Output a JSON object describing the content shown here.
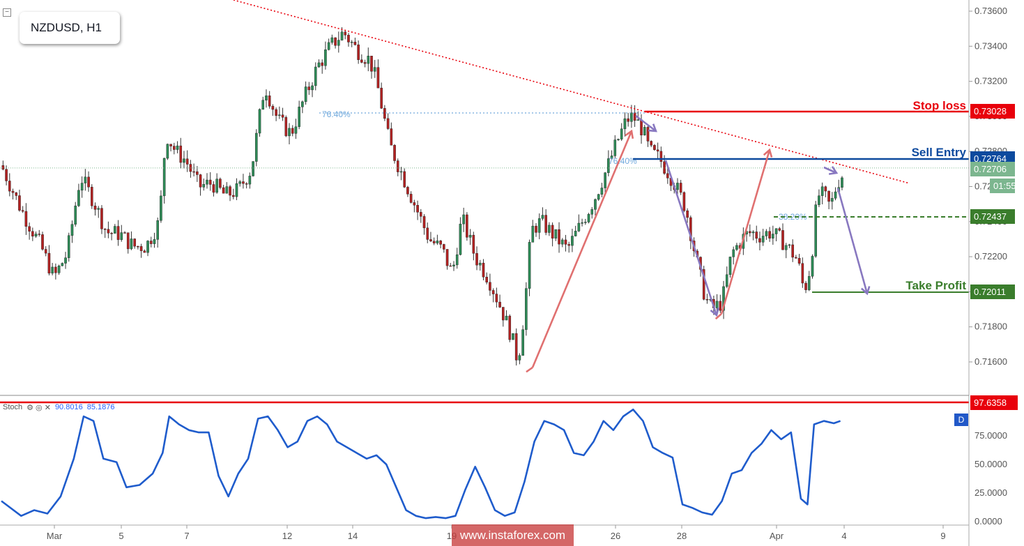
{
  "symbol": "NZDUSD, H1",
  "watermark": "www.instaforex.com",
  "levels": {
    "stop_loss": {
      "label": "Stop loss",
      "price": "0.73028",
      "color": "#e8000b"
    },
    "sell_entry": {
      "label": "Sell Entry",
      "price": "0.72764",
      "color": "#0d4a9e"
    },
    "last_price": {
      "price": "0.72706",
      "countdown": "01:55",
      "color": "#7cb68f"
    },
    "support": {
      "price": "0.72437",
      "color": "#3a7d2c"
    },
    "take_profit": {
      "label": "Take Profit",
      "price": "0.72011",
      "color": "#3a7d2c"
    }
  },
  "fib_labels": [
    "76.40%",
    "76.40%",
    "38.20%"
  ],
  "stoch": {
    "name": "Stoch",
    "k": "90.8016",
    "d": "85.1876",
    "overbought_label": "97.6358",
    "d_badge": "D",
    "axis": [
      "75.0000",
      "50.0000",
      "25.0000",
      "0.0000"
    ]
  },
  "chart_data": {
    "type": "candlestick",
    "timeframe": "H1",
    "ylim": [
      0.715,
      0.737
    ],
    "y_ticks": [
      "0.73600",
      "0.73400",
      "0.73200",
      "0.73000",
      "0.72800",
      "0.72600",
      "0.72400",
      "0.72200",
      "0.72000",
      "0.71800",
      "0.71600"
    ],
    "x_ticks": [
      "Mar",
      "5",
      "7",
      "12",
      "14",
      "19",
      "26",
      "28",
      "Apr",
      "4",
      "9"
    ],
    "price_path": [
      [
        0,
        0.7272
      ],
      [
        6,
        0.7247
      ],
      [
        12,
        0.7226
      ],
      [
        16,
        0.7208
      ],
      [
        20,
        0.7222
      ],
      [
        24,
        0.7266
      ],
      [
        28,
        0.7252
      ],
      [
        32,
        0.7234
      ],
      [
        36,
        0.7233
      ],
      [
        40,
        0.7226
      ],
      [
        44,
        0.7226
      ],
      [
        48,
        0.724
      ],
      [
        50,
        0.729
      ],
      [
        53,
        0.728
      ],
      [
        56,
        0.7275
      ],
      [
        60,
        0.726
      ],
      [
        64,
        0.7262
      ],
      [
        68,
        0.7255
      ],
      [
        72,
        0.7258
      ],
      [
        76,
        0.727
      ],
      [
        80,
        0.7318
      ],
      [
        84,
        0.7298
      ],
      [
        88,
        0.729
      ],
      [
        92,
        0.731
      ],
      [
        96,
        0.7328
      ],
      [
        100,
        0.734
      ],
      [
        104,
        0.7348
      ],
      [
        108,
        0.7338
      ],
      [
        112,
        0.7332
      ],
      [
        114,
        0.732
      ],
      [
        118,
        0.7284
      ],
      [
        122,
        0.7266
      ],
      [
        126,
        0.7248
      ],
      [
        130,
        0.723
      ],
      [
        134,
        0.7224
      ],
      [
        137,
        0.721
      ],
      [
        140,
        0.7242
      ],
      [
        144,
        0.722
      ],
      [
        148,
        0.7208
      ],
      [
        152,
        0.719
      ],
      [
        155,
        0.7175
      ],
      [
        157,
        0.716
      ],
      [
        159,
        0.719
      ],
      [
        161,
        0.7235
      ],
      [
        164,
        0.724
      ],
      [
        168,
        0.7232
      ],
      [
        172,
        0.7224
      ],
      [
        176,
        0.7238
      ],
      [
        180,
        0.7252
      ],
      [
        184,
        0.727
      ],
      [
        187,
        0.7285
      ],
      [
        190,
        0.7298
      ],
      [
        192,
        0.73
      ],
      [
        195,
        0.7292
      ],
      [
        197,
        0.728
      ],
      [
        200,
        0.7276
      ],
      [
        204,
        0.7264
      ],
      [
        208,
        0.7248
      ],
      [
        211,
        0.722
      ],
      [
        214,
        0.7196
      ],
      [
        216,
        0.719
      ],
      [
        219,
        0.7194
      ],
      [
        222,
        0.7222
      ],
      [
        226,
        0.7232
      ],
      [
        228,
        0.7234
      ],
      [
        230,
        0.7232
      ],
      [
        234,
        0.7234
      ],
      [
        238,
        0.7228
      ],
      [
        242,
        0.7218
      ],
      [
        244,
        0.72
      ],
      [
        246,
        0.7215
      ],
      [
        248,
        0.7255
      ],
      [
        250,
        0.7255
      ],
      [
        252,
        0.7248
      ],
      [
        254,
        0.7262
      ],
      [
        256,
        0.7268
      ]
    ],
    "trendline": {
      "from": [
        0,
        0.7398
      ],
      "to": [
        265,
        0.7256
      ],
      "style": "dotted",
      "color": "#e8000b"
    },
    "arrows": [
      {
        "from": [
          158,
          0.716
        ],
        "to": [
          190,
          0.7302
        ],
        "color": "#e07070"
      },
      {
        "from": [
          191,
          0.73
        ],
        "to": [
          194,
          0.7292
        ],
        "color": "#8878c0"
      },
      {
        "from": [
          196,
          0.7288
        ],
        "to": [
          217,
          0.7188
        ],
        "color": "#8878c0"
      },
      {
        "from": [
          218,
          0.7189
        ],
        "to": [
          234,
          0.7281
        ],
        "color": "#e07070"
      },
      {
        "from": [
          249,
          0.7271
        ],
        "to": [
          253,
          0.7264
        ],
        "color": "#8878c0"
      },
      {
        "from": [
          253,
          0.7243
        ],
        "to": [
          263,
          0.7201
        ],
        "color": "#8878c0"
      }
    ],
    "stochastic": [
      [
        0,
        18
      ],
      [
        6,
        5
      ],
      [
        10,
        10
      ],
      [
        14,
        7
      ],
      [
        18,
        22
      ],
      [
        22,
        55
      ],
      [
        25,
        92
      ],
      [
        28,
        88
      ],
      [
        31,
        55
      ],
      [
        35,
        52
      ],
      [
        38,
        30
      ],
      [
        42,
        32
      ],
      [
        46,
        42
      ],
      [
        49,
        60
      ],
      [
        51,
        92
      ],
      [
        54,
        85
      ],
      [
        57,
        80
      ],
      [
        60,
        78
      ],
      [
        63,
        78
      ],
      [
        66,
        40
      ],
      [
        69,
        22
      ],
      [
        72,
        42
      ],
      [
        75,
        55
      ],
      [
        78,
        90
      ],
      [
        81,
        92
      ],
      [
        84,
        80
      ],
      [
        87,
        65
      ],
      [
        90,
        70
      ],
      [
        93,
        88
      ],
      [
        96,
        92
      ],
      [
        99,
        85
      ],
      [
        102,
        70
      ],
      [
        105,
        65
      ],
      [
        108,
        60
      ],
      [
        111,
        55
      ],
      [
        114,
        58
      ],
      [
        117,
        50
      ],
      [
        120,
        30
      ],
      [
        123,
        10
      ],
      [
        126,
        5
      ],
      [
        129,
        3
      ],
      [
        132,
        4
      ],
      [
        135,
        3
      ],
      [
        138,
        5
      ],
      [
        141,
        28
      ],
      [
        144,
        48
      ],
      [
        147,
        30
      ],
      [
        150,
        10
      ],
      [
        153,
        5
      ],
      [
        156,
        8
      ],
      [
        159,
        35
      ],
      [
        162,
        70
      ],
      [
        165,
        88
      ],
      [
        168,
        85
      ],
      [
        171,
        80
      ],
      [
        174,
        60
      ],
      [
        177,
        58
      ],
      [
        180,
        70
      ],
      [
        183,
        88
      ],
      [
        186,
        80
      ],
      [
        189,
        92
      ],
      [
        192,
        98
      ],
      [
        195,
        88
      ],
      [
        198,
        65
      ],
      [
        201,
        60
      ],
      [
        204,
        56
      ],
      [
        207,
        15
      ],
      [
        210,
        12
      ],
      [
        213,
        8
      ],
      [
        216,
        6
      ],
      [
        219,
        18
      ],
      [
        222,
        42
      ],
      [
        225,
        45
      ],
      [
        228,
        60
      ],
      [
        231,
        68
      ],
      [
        234,
        80
      ],
      [
        237,
        72
      ],
      [
        240,
        78
      ],
      [
        243,
        20
      ],
      [
        245,
        15
      ],
      [
        247,
        85
      ],
      [
        250,
        88
      ],
      [
        253,
        86
      ],
      [
        255,
        88
      ]
    ]
  }
}
